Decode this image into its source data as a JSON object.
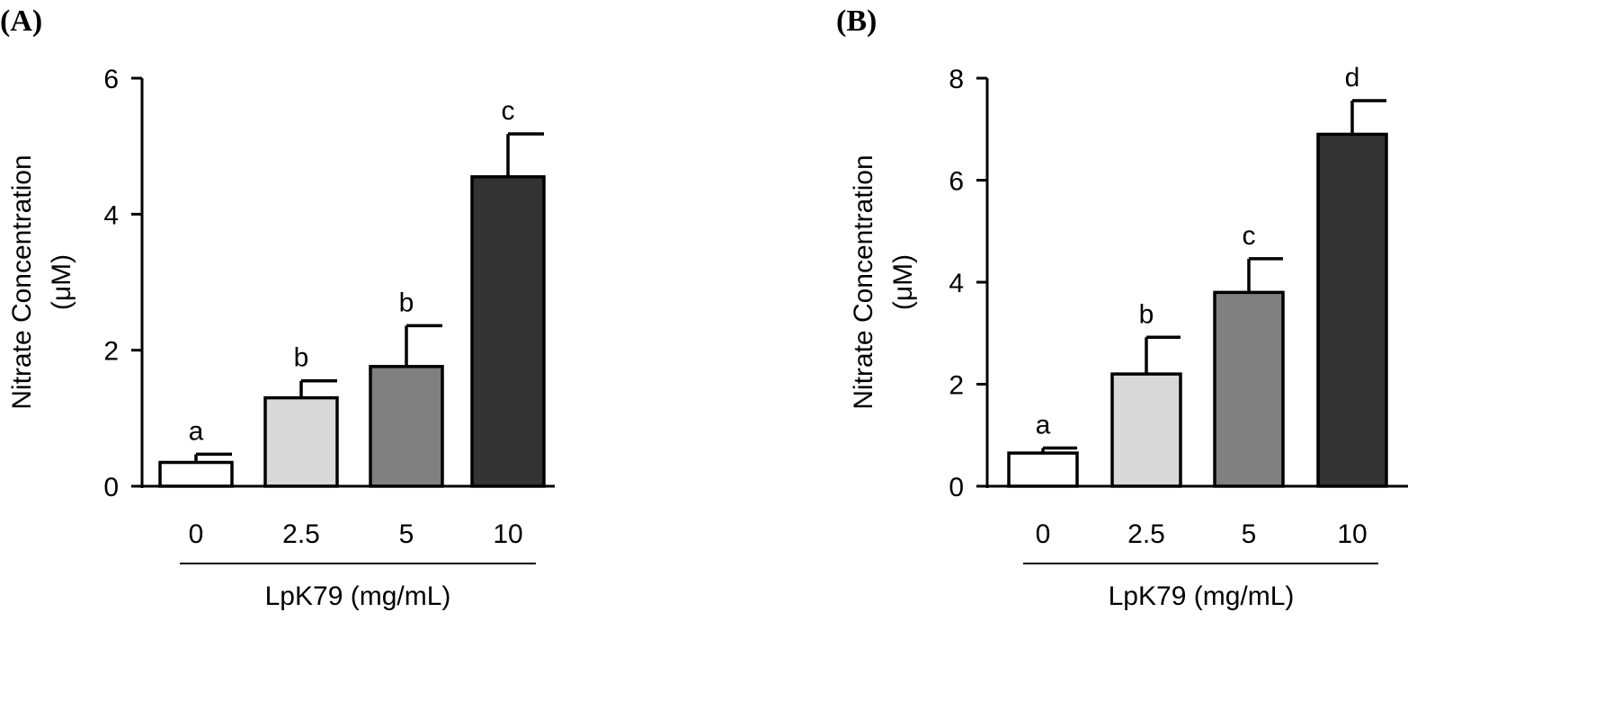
{
  "chart_data": [
    {
      "panel_label": "(A)",
      "type": "bar",
      "categories": [
        "0",
        "2.5",
        "5",
        "10"
      ],
      "values": [
        0.35,
        1.3,
        1.76,
        4.55
      ],
      "errors": [
        0.12,
        0.25,
        0.6,
        0.63
      ],
      "significance": [
        "a",
        "b",
        "b",
        "c"
      ],
      "bar_colors": [
        "#ffffff",
        "#d9d9d9",
        "#808080",
        "#333333"
      ],
      "ylim": [
        0,
        6
      ],
      "yticks": [
        "0",
        "2",
        "4",
        "6"
      ],
      "ylabel_line1": "Nitrate Concentration",
      "ylabel_line2": "(μM)",
      "xlabel": "LpK79 (mg/mL)",
      "grid": false,
      "legend": "none"
    },
    {
      "panel_label": "(B)",
      "type": "bar",
      "categories": [
        "0",
        "2.5",
        "5",
        "10"
      ],
      "values": [
        0.65,
        2.2,
        3.8,
        6.9
      ],
      "errors": [
        0.1,
        0.72,
        0.66,
        0.66
      ],
      "significance": [
        "a",
        "b",
        "c",
        "d"
      ],
      "bar_colors": [
        "#ffffff",
        "#d9d9d9",
        "#808080",
        "#333333"
      ],
      "ylim": [
        0,
        8
      ],
      "yticks": [
        "0",
        "2",
        "4",
        "6",
        "8"
      ],
      "ylabel_line1": "Nitrate Concentration",
      "ylabel_line2": "(μM)",
      "xlabel": "LpK79 (mg/mL)",
      "grid": false,
      "legend": "none"
    }
  ]
}
